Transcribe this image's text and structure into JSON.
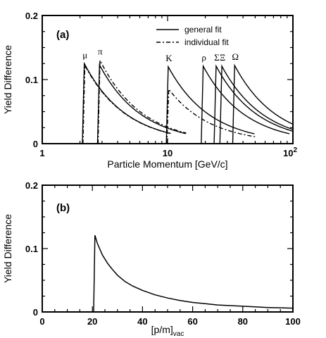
{
  "chart_data": [
    {
      "panel": "(a)",
      "type": "line",
      "xscale": "log",
      "xlim": [
        1,
        100
      ],
      "ylim": [
        0,
        0.2
      ],
      "xlabel": "Particle Momentum [GeV/c]",
      "ylabel": "Yield Difference",
      "xticklabels": [
        "1",
        "10",
        "10^2"
      ],
      "yticklabels": [
        "0",
        "0.1",
        "0.2"
      ],
      "legend": {
        "position": "top-right",
        "entries": [
          {
            "label": "general fit",
            "style": "solid"
          },
          {
            "label": "individual fit",
            "style": "dashdot"
          }
        ]
      },
      "particles": [
        {
          "label": "μ",
          "mass": 0.10566,
          "general_peak": 0.125,
          "individual_peak": 0.122
        },
        {
          "label": "π",
          "mass": 0.13957,
          "general_peak": 0.123,
          "individual_peak": 0.13
        },
        {
          "label": "K",
          "mass": 0.49368,
          "general_peak": 0.12,
          "individual_peak": 0.085
        },
        {
          "label": "ρ",
          "mass": 0.93827,
          "general_peak": 0.121
        },
        {
          "label": "Σ",
          "mass": 1.18937,
          "general_peak": 0.121
        },
        {
          "label": "Ξ",
          "mass": 1.32171,
          "general_peak": 0.121
        },
        {
          "label": "Ω",
          "mass": 1.67245,
          "general_peak": 0.122
        }
      ],
      "threshold_pm": 20.5,
      "end_pm": 100
    },
    {
      "panel": "(b)",
      "type": "line",
      "xlim": [
        0,
        100
      ],
      "ylim": [
        0,
        0.2
      ],
      "xlabel": "[p/m]",
      "xlabel_sub": "vac",
      "ylabel": "Yield Difference",
      "xticklabels": [
        "0",
        "20",
        "40",
        "60",
        "80",
        "100"
      ],
      "yticklabels": [
        "0",
        "0.1",
        "0.2"
      ],
      "series": [
        {
          "x": [
            20.5,
            21,
            22,
            24,
            26,
            28,
            30,
            33,
            36,
            40,
            45,
            50,
            55,
            60,
            65,
            70,
            75,
            80,
            85,
            90,
            95,
            100
          ],
          "y": [
            0,
            0.121,
            0.108,
            0.09,
            0.077,
            0.067,
            0.058,
            0.048,
            0.041,
            0.034,
            0.027,
            0.022,
            0.018,
            0.015,
            0.013,
            0.011,
            0.01,
            0.009,
            0.008,
            0.007,
            0.0065,
            0.006
          ]
        }
      ]
    }
  ]
}
